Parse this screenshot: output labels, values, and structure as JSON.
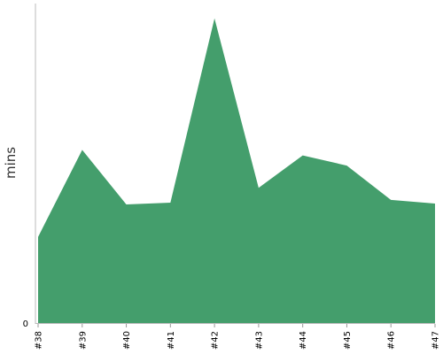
{
  "chart_data": {
    "type": "area",
    "categories": [
      "#38",
      "#39",
      "#40",
      "#41",
      "#42",
      "#43",
      "#44",
      "#45",
      "#46",
      "#47"
    ],
    "series": [
      {
        "values": [
          9.3,
          18.7,
          12.8,
          13.0,
          32.9,
          14.6,
          18.1,
          17.0,
          13.3,
          12.9
        ]
      }
    ],
    "title": "",
    "xlabel": "",
    "ylabel": "mins",
    "y_tick_labels": [
      "0"
    ],
    "ylim": [
      0,
      34.5
    ],
    "grid": false,
    "legend": "none",
    "colors": {
      "area_fill": "#449e6c",
      "axis": "#bbbbbb",
      "tick": "#999999"
    }
  }
}
